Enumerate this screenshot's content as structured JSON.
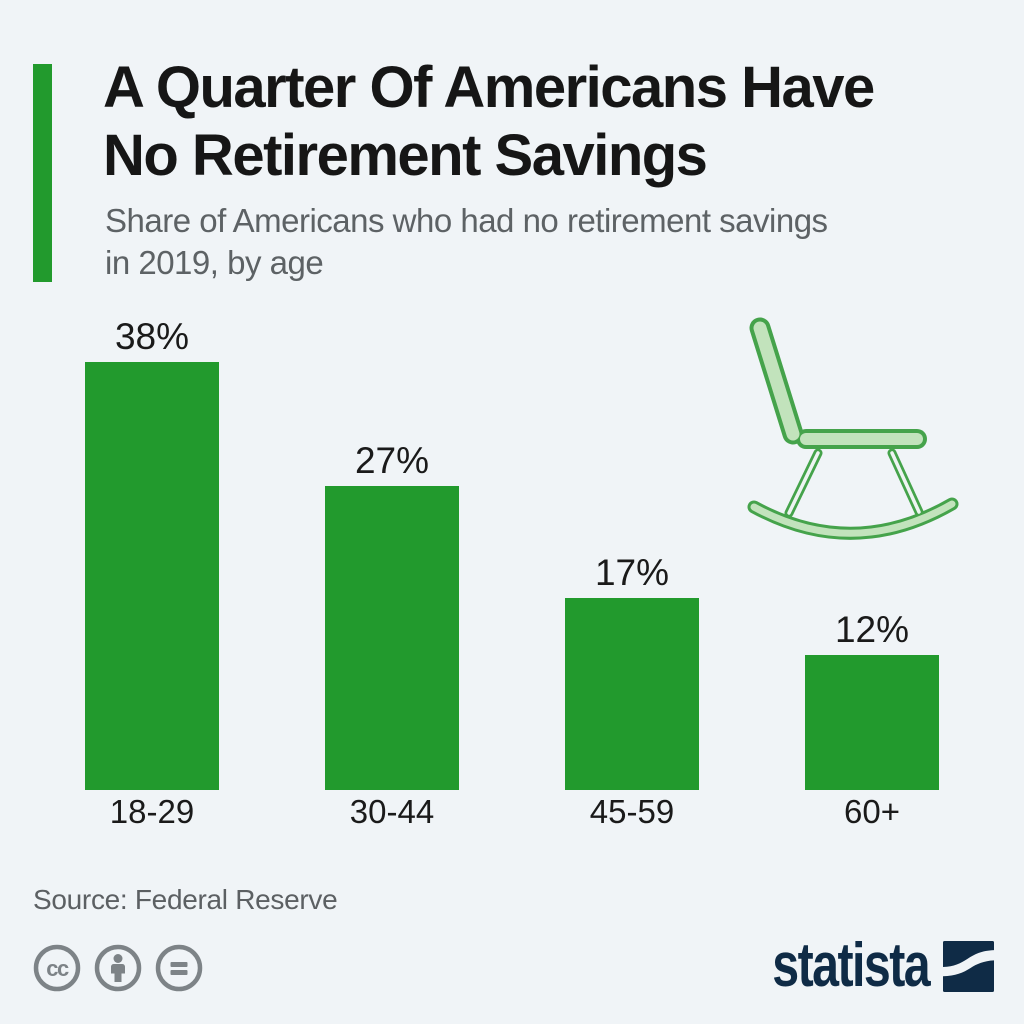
{
  "page": {
    "background_color": "#f0f4f7",
    "accent_color": "#229a2d",
    "text_dark": "#161616",
    "text_gray": "#5d6265",
    "icon_gray": "#7d8387",
    "brand_navy": "#0f2b46"
  },
  "header": {
    "title_line1": "A Quarter Of Americans Have",
    "title_line2": "No Retirement Savings",
    "subtitle_line1": "Share of Americans who had no retirement savings",
    "subtitle_line2": "in 2019, by age"
  },
  "chart_data": {
    "type": "bar",
    "title": "A Quarter Of Americans Have No Retirement Savings",
    "subtitle": "Share of Americans who had no retirement savings in 2019, by age",
    "categories": [
      "18-29",
      "30-44",
      "45-59",
      "60+"
    ],
    "values": [
      38,
      27,
      17,
      12
    ],
    "value_labels": [
      "38%",
      "27%",
      "17%",
      "12%"
    ],
    "unit": "%",
    "bar_color": "#229a2d",
    "axes_visible": false,
    "grid": false,
    "legend": false,
    "decoration_icon": "rocking-chair",
    "chair_outline_color": "#45a34b",
    "chair_fill_color": "#c2e3bc"
  },
  "footer": {
    "source": "Source: Federal Reserve",
    "cc_text": "cc",
    "license_icons": [
      "cc-icon",
      "cc-by-icon",
      "cc-nd-icon"
    ],
    "brand": "statista"
  }
}
